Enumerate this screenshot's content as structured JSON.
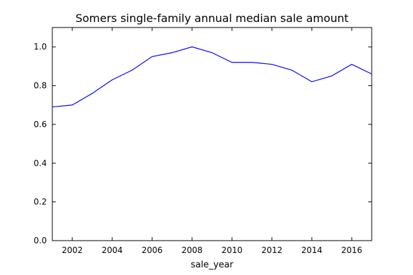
{
  "chart_data": {
    "type": "line",
    "title": "Somers single-family annual median sale amount",
    "xlabel": "sale_year",
    "ylabel": "",
    "xlim": [
      2001,
      2017
    ],
    "ylim": [
      0.0,
      1.1
    ],
    "x_ticks": [
      2002,
      2004,
      2006,
      2008,
      2010,
      2012,
      2014,
      2016
    ],
    "y_ticks": [
      0.0,
      0.2,
      0.4,
      0.6,
      0.8,
      1.0
    ],
    "x_tick_labels": [
      "2002",
      "2004",
      "2006",
      "2008",
      "2010",
      "2012",
      "2014",
      "2016"
    ],
    "y_tick_labels": [
      "0.0",
      "0.2",
      "0.4",
      "0.6",
      "0.8",
      "1.0"
    ],
    "grid": false,
    "legend": "none",
    "series": [
      {
        "color": "#0000ff",
        "x": [
          2001,
          2002,
          2003,
          2004,
          2005,
          2006,
          2007,
          2008,
          2009,
          2010,
          2011,
          2012,
          2013,
          2014,
          2015,
          2016,
          2017
        ],
        "y": [
          0.69,
          0.7,
          0.76,
          0.83,
          0.88,
          0.95,
          0.97,
          1.0,
          0.97,
          0.92,
          0.92,
          0.91,
          0.88,
          0.82,
          0.85,
          0.91,
          0.86
        ]
      }
    ]
  }
}
